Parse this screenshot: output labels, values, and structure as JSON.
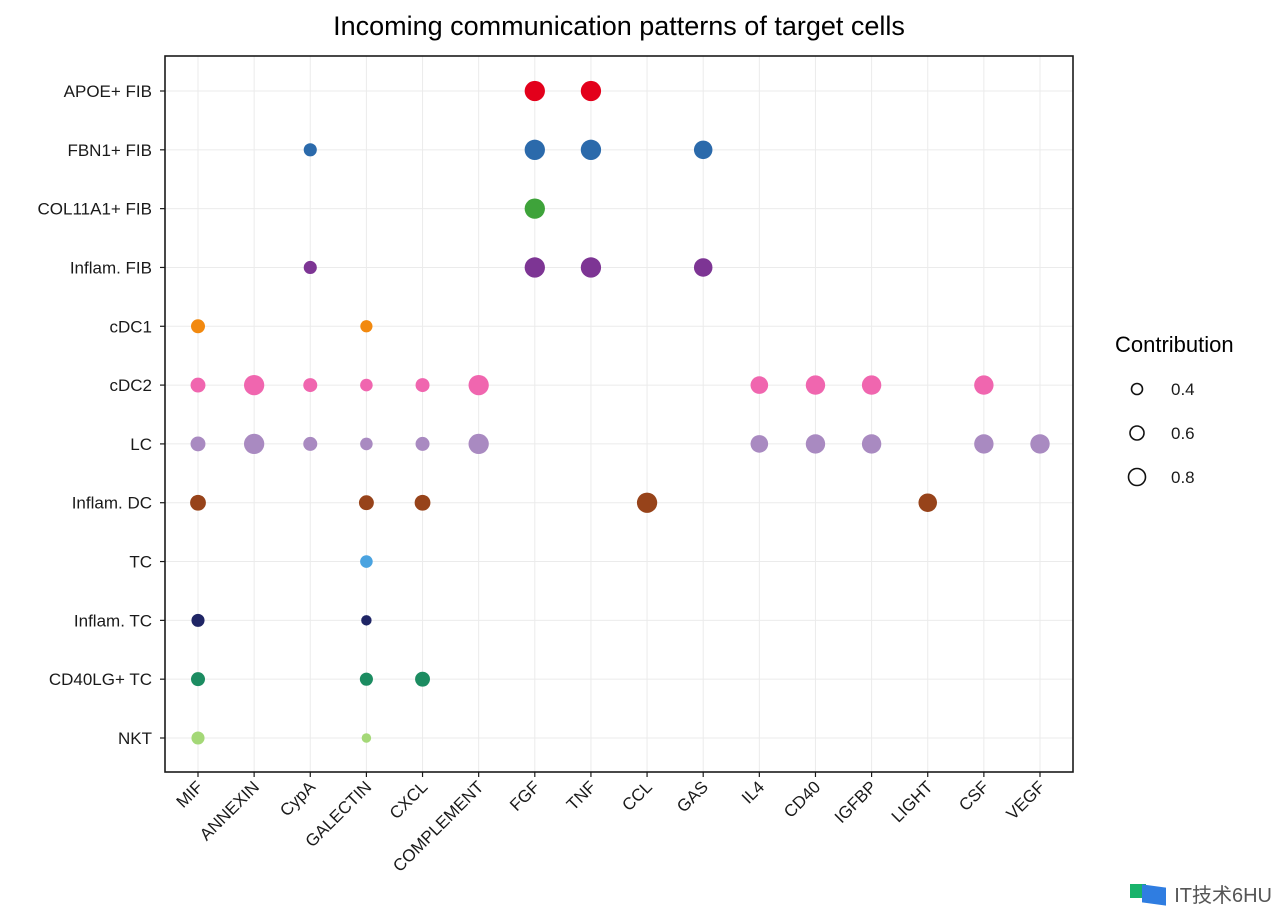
{
  "chart_data": {
    "type": "scatter",
    "title": "Incoming communication patterns of target cells",
    "xlabel": "",
    "ylabel": "",
    "x_categories": [
      "MIF",
      "ANNEXIN",
      "CypA",
      "GALECTIN",
      "CXCL",
      "COMPLEMENT",
      "FGF",
      "TNF",
      "CCL",
      "GAS",
      "IL4",
      "CD40",
      "IGFBP",
      "LIGHT",
      "CSF",
      "VEGF"
    ],
    "y_categories": [
      "APOE+ FIB",
      "FBN1+ FIB",
      "COL11A1+ FIB",
      "Inflam. FIB",
      "cDC1",
      "cDC2",
      "LC",
      "Inflam. DC",
      "TC",
      "Inflam. TC",
      "CD40LG+ TC",
      "NKT"
    ],
    "grid": true,
    "legend": {
      "title": "Contribution",
      "placement": "right",
      "entries": [
        0.4,
        0.6,
        0.8
      ]
    },
    "row_colors": {
      "APOE+ FIB": "#E3001B",
      "FBN1+ FIB": "#2B6AAB",
      "COL11A1+ FIB": "#3EA33A",
      "Inflam. FIB": "#7D3594",
      "cDC1": "#F2890F",
      "cDC2": "#F066AF",
      "LC": "#A98AC1",
      "Inflam. DC": "#97431A",
      "TC": "#4AA3E0",
      "Inflam. TC": "#1F2565",
      "CD40LG+ TC": "#1C8C61",
      "NKT": "#A4D877"
    },
    "points": [
      {
        "y": "APOE+ FIB",
        "x": "FGF",
        "value": 0.85
      },
      {
        "y": "APOE+ FIB",
        "x": "TNF",
        "value": 0.85
      },
      {
        "y": "FBN1+ FIB",
        "x": "CypA",
        "value": 0.45
      },
      {
        "y": "FBN1+ FIB",
        "x": "FGF",
        "value": 0.85
      },
      {
        "y": "FBN1+ FIB",
        "x": "TNF",
        "value": 0.85
      },
      {
        "y": "FBN1+ FIB",
        "x": "GAS",
        "value": 0.75
      },
      {
        "y": "COL11A1+ FIB",
        "x": "FGF",
        "value": 0.85
      },
      {
        "y": "Inflam. FIB",
        "x": "CypA",
        "value": 0.45
      },
      {
        "y": "Inflam. FIB",
        "x": "FGF",
        "value": 0.85
      },
      {
        "y": "Inflam. FIB",
        "x": "TNF",
        "value": 0.85
      },
      {
        "y": "Inflam. FIB",
        "x": "GAS",
        "value": 0.75
      },
      {
        "y": "cDC1",
        "x": "MIF",
        "value": 0.5
      },
      {
        "y": "cDC1",
        "x": "GALECTIN",
        "value": 0.4
      },
      {
        "y": "cDC2",
        "x": "MIF",
        "value": 0.55
      },
      {
        "y": "cDC2",
        "x": "ANNEXIN",
        "value": 0.85
      },
      {
        "y": "cDC2",
        "x": "CypA",
        "value": 0.5
      },
      {
        "y": "cDC2",
        "x": "GALECTIN",
        "value": 0.42
      },
      {
        "y": "cDC2",
        "x": "CXCL",
        "value": 0.5
      },
      {
        "y": "cDC2",
        "x": "COMPLEMENT",
        "value": 0.85
      },
      {
        "y": "cDC2",
        "x": "IL4",
        "value": 0.7
      },
      {
        "y": "cDC2",
        "x": "CD40",
        "value": 0.8
      },
      {
        "y": "cDC2",
        "x": "IGFBP",
        "value": 0.8
      },
      {
        "y": "cDC2",
        "x": "CSF",
        "value": 0.8
      },
      {
        "y": "LC",
        "x": "MIF",
        "value": 0.55
      },
      {
        "y": "LC",
        "x": "ANNEXIN",
        "value": 0.85
      },
      {
        "y": "LC",
        "x": "CypA",
        "value": 0.5
      },
      {
        "y": "LC",
        "x": "GALECTIN",
        "value": 0.42
      },
      {
        "y": "LC",
        "x": "CXCL",
        "value": 0.5
      },
      {
        "y": "LC",
        "x": "COMPLEMENT",
        "value": 0.85
      },
      {
        "y": "LC",
        "x": "IL4",
        "value": 0.7
      },
      {
        "y": "LC",
        "x": "CD40",
        "value": 0.8
      },
      {
        "y": "LC",
        "x": "IGFBP",
        "value": 0.8
      },
      {
        "y": "LC",
        "x": "CSF",
        "value": 0.8
      },
      {
        "y": "LC",
        "x": "VEGF",
        "value": 0.8
      },
      {
        "y": "Inflam. DC",
        "x": "MIF",
        "value": 0.6
      },
      {
        "y": "Inflam. DC",
        "x": "GALECTIN",
        "value": 0.55
      },
      {
        "y": "Inflam. DC",
        "x": "CXCL",
        "value": 0.6
      },
      {
        "y": "Inflam. DC",
        "x": "CCL",
        "value": 0.85
      },
      {
        "y": "Inflam. DC",
        "x": "LIGHT",
        "value": 0.75
      },
      {
        "y": "TC",
        "x": "GALECTIN",
        "value": 0.42
      },
      {
        "y": "Inflam. TC",
        "x": "MIF",
        "value": 0.45
      },
      {
        "y": "Inflam. TC",
        "x": "GALECTIN",
        "value": 0.3
      },
      {
        "y": "CD40LG+ TC",
        "x": "MIF",
        "value": 0.5
      },
      {
        "y": "CD40LG+ TC",
        "x": "GALECTIN",
        "value": 0.45
      },
      {
        "y": "CD40LG+ TC",
        "x": "CXCL",
        "value": 0.55
      },
      {
        "y": "NKT",
        "x": "MIF",
        "value": 0.45
      },
      {
        "y": "NKT",
        "x": "GALECTIN",
        "value": 0.25
      }
    ]
  },
  "watermark": {
    "text": "IT技术6HU"
  }
}
